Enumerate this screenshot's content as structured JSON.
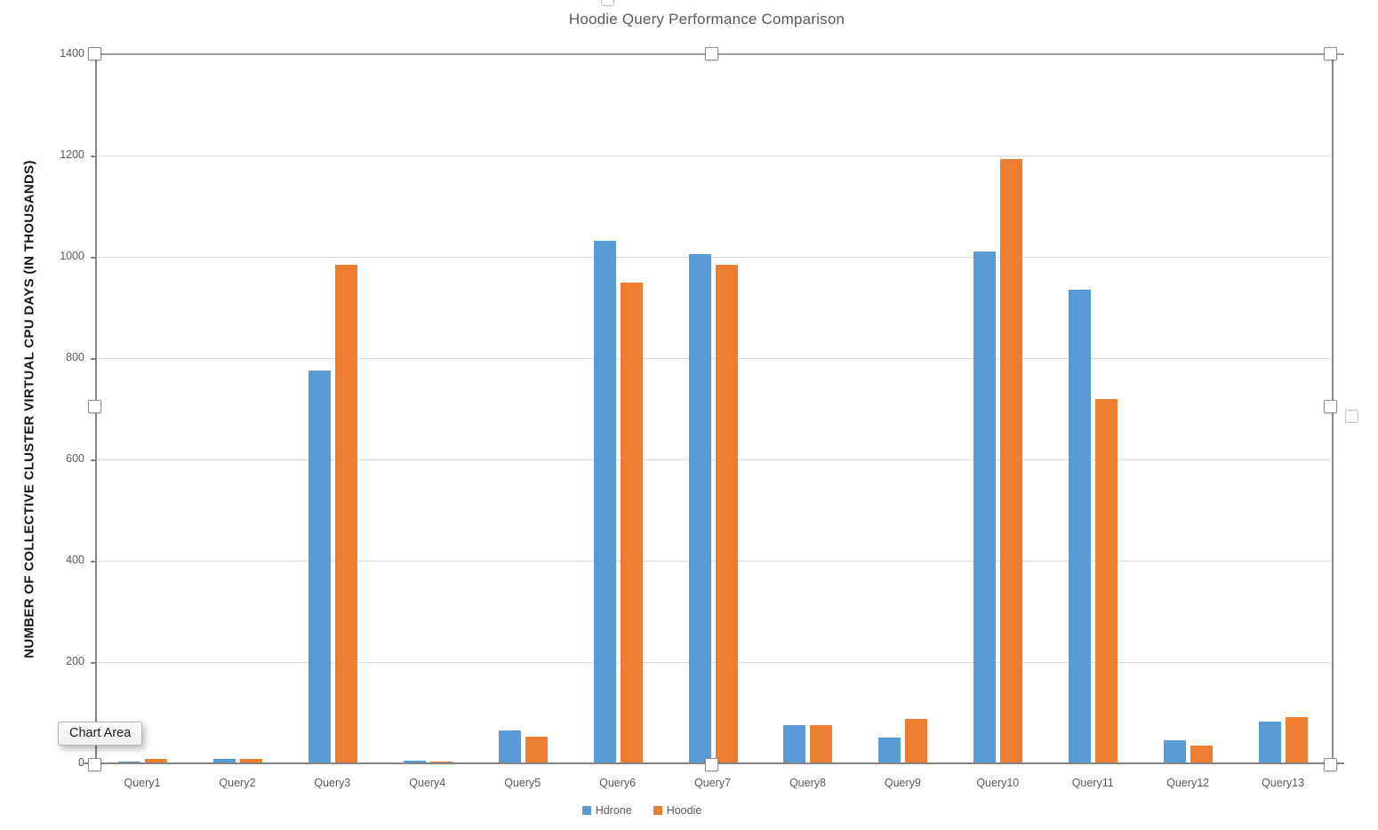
{
  "tooltip_text": "Chart Area",
  "colors": {
    "series_blue": "#5B9BD5",
    "series_orange": "#ED7D31",
    "text_gray": "#595959",
    "gridline": "#DCDCDC",
    "axis_line": "#848484"
  },
  "chart_data": {
    "type": "bar",
    "title": "Hoodie Query Performance Comparison",
    "ylabel": "NUMBER OF COLLECTIVE CLUSTER VIRTUAL CPU DAYS (IN THOUSANDS)",
    "xlabel": "",
    "categories": [
      "Query1",
      "Query2",
      "Query3",
      "Query4",
      "Query5",
      "Query6",
      "Query7",
      "Query8",
      "Query9",
      "Query10",
      "Query11",
      "Query12",
      "Query13"
    ],
    "series": [
      {
        "name": "Hdrone",
        "color": "#5B9BD5",
        "values": [
          4,
          8,
          775,
          5,
          65,
          1031,
          1006,
          76,
          51,
          1010,
          935,
          46,
          83
        ]
      },
      {
        "name": "Hoodie",
        "color": "#ED7D31",
        "values": [
          9,
          8,
          985,
          4,
          53,
          950,
          985,
          76,
          88,
          1193,
          719,
          35,
          91
        ]
      }
    ],
    "ylim": [
      0,
      1400
    ],
    "yticks": [
      0,
      200,
      400,
      600,
      800,
      1000,
      1200,
      1400
    ],
    "grid": true,
    "legend_position": "bottom"
  }
}
